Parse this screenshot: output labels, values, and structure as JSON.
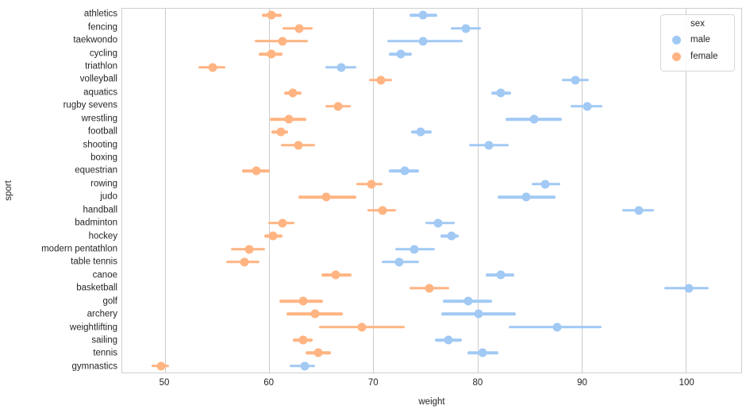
{
  "chart_data": {
    "type": "scatter",
    "subtype": "point-plot-with-ci",
    "title": "",
    "xlabel": "weight",
    "ylabel": "sport",
    "xlim": [
      45.9,
      105.3
    ],
    "xticks": [
      50,
      60,
      70,
      80,
      90,
      100
    ],
    "grid": "vertical-only",
    "legend": {
      "title": "sex",
      "position": "upper right"
    },
    "categories": [
      "athletics",
      "fencing",
      "taekwondo",
      "cycling",
      "triathlon",
      "volleyball",
      "aquatics",
      "rugby sevens",
      "wrestling",
      "football",
      "shooting",
      "boxing",
      "equestrian",
      "rowing",
      "judo",
      "handball",
      "badminton",
      "hockey",
      "modern pentathlon",
      "table tennis",
      "canoe",
      "basketball",
      "golf",
      "archery",
      "weightlifting",
      "sailing",
      "tennis",
      "gymnastics"
    ],
    "series": [
      {
        "name": "male",
        "color": "#a1c9f4",
        "values": [
          74.8,
          78.9,
          74.8,
          72.6,
          66.9,
          89.4,
          82.2,
          90.5,
          85.4,
          74.5,
          81.1,
          null,
          73.0,
          86.5,
          84.7,
          95.5,
          76.2,
          77.5,
          73.9,
          72.5,
          82.2,
          100.3,
          79.1,
          80.1,
          87.6,
          77.2,
          80.5,
          63.4
        ],
        "ci": [
          [
            73.5,
            76.1
          ],
          [
            77.4,
            80.3
          ],
          [
            71.3,
            78.6
          ],
          [
            71.5,
            73.7
          ],
          [
            65.4,
            68.4
          ],
          [
            88.1,
            90.7
          ],
          [
            81.3,
            83.2
          ],
          [
            88.9,
            92.0
          ],
          [
            82.7,
            88.1
          ],
          [
            73.6,
            75.6
          ],
          [
            79.2,
            83.0
          ],
          null,
          [
            71.5,
            74.4
          ],
          [
            85.2,
            87.9
          ],
          [
            81.9,
            87.5
          ],
          [
            93.9,
            96.9
          ],
          [
            75.0,
            77.8
          ],
          [
            76.4,
            78.2
          ],
          [
            72.1,
            75.9
          ],
          [
            70.8,
            74.4
          ],
          [
            80.8,
            83.5
          ],
          [
            97.9,
            102.2
          ],
          [
            76.7,
            81.4
          ],
          [
            76.5,
            83.7
          ],
          [
            83.0,
            91.9
          ],
          [
            75.9,
            78.5
          ],
          [
            79.0,
            82.0
          ],
          [
            62.0,
            64.4
          ]
        ]
      },
      {
        "name": "female",
        "color": "#ffb482",
        "values": [
          60.2,
          62.9,
          61.3,
          60.2,
          54.6,
          70.7,
          62.3,
          66.6,
          61.9,
          61.1,
          62.8,
          null,
          58.8,
          69.8,
          65.5,
          70.9,
          61.3,
          60.4,
          58.1,
          57.6,
          66.4,
          75.4,
          63.3,
          64.4,
          68.9,
          63.3,
          64.7,
          49.6
        ],
        "ci": [
          [
            59.3,
            61.2
          ],
          [
            61.3,
            64.2
          ],
          [
            58.6,
            63.7
          ],
          [
            59.0,
            61.3
          ],
          [
            53.2,
            55.8
          ],
          [
            69.6,
            71.8
          ],
          [
            61.4,
            63.1
          ],
          [
            65.4,
            67.8
          ],
          [
            60.1,
            63.6
          ],
          [
            60.2,
            61.8
          ],
          [
            61.1,
            64.4
          ],
          null,
          [
            57.4,
            60.1
          ],
          [
            68.4,
            70.9
          ],
          [
            62.8,
            68.4
          ],
          [
            69.4,
            72.2
          ],
          [
            59.9,
            62.4
          ],
          [
            59.5,
            61.3
          ],
          [
            56.3,
            59.6
          ],
          [
            55.9,
            59.1
          ],
          [
            65.0,
            67.9
          ],
          [
            73.5,
            77.3
          ],
          [
            61.0,
            65.2
          ],
          [
            61.7,
            67.1
          ],
          [
            64.8,
            73.0
          ],
          [
            62.3,
            64.2
          ],
          [
            63.5,
            65.9
          ],
          [
            48.7,
            50.4
          ]
        ]
      }
    ]
  }
}
